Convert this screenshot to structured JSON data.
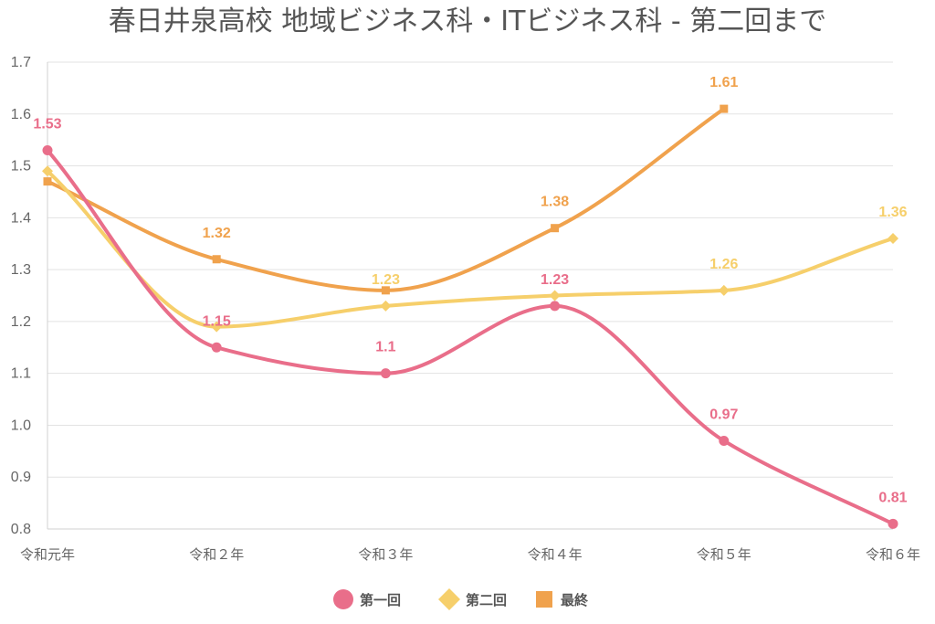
{
  "chart_data": {
    "type": "line",
    "title": "春日井泉高校 地域ビジネス科・ITビジネス科 - 第二回まで",
    "xlabel": "",
    "ylabel": "",
    "categories": [
      "令和元年",
      "令和２年",
      "令和３年",
      "令和４年",
      "令和５年",
      "令和６年"
    ],
    "ylim": [
      0.8,
      1.7
    ],
    "yticks": [
      "0.8",
      "0.9",
      "1.0",
      "1.1",
      "1.2",
      "1.3",
      "1.4",
      "1.5",
      "1.6",
      "1.7"
    ],
    "grid": true,
    "legend_position": "bottom",
    "smooth": true,
    "series": [
      {
        "name": "第一回",
        "color": "#e96e8a",
        "marker": "circle",
        "values": [
          1.53,
          1.15,
          1.1,
          1.23,
          0.97,
          0.81
        ],
        "labels": [
          "1.53",
          "1.15",
          "1.1",
          "1.23",
          "0.97",
          "0.81"
        ]
      },
      {
        "name": "第二回",
        "color": "#f6cf6b",
        "marker": "diamond",
        "values": [
          1.49,
          1.19,
          1.23,
          1.25,
          1.26,
          1.36
        ],
        "labels": [
          "",
          "",
          "1.23",
          "",
          "1.26",
          "1.36"
        ]
      },
      {
        "name": "最終",
        "color": "#f0a24d",
        "marker": "square",
        "values": [
          1.47,
          1.32,
          1.26,
          1.38,
          1.61,
          null
        ],
        "labels": [
          "",
          "1.32",
          "",
          "1.38",
          "1.61",
          ""
        ]
      }
    ]
  }
}
